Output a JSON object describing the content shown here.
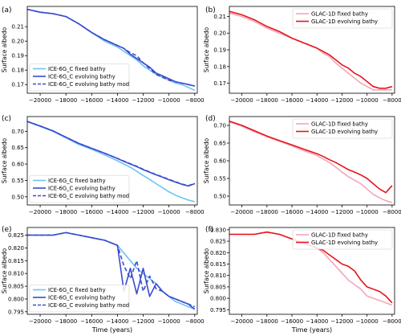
{
  "figure": {
    "x_axis_title": "Time (years)",
    "y_axis_title": "Surface albedo"
  },
  "chart_data": [
    {
      "id": "a",
      "type": "line",
      "panel_label": "(a)",
      "xlim": [
        -21000,
        -7800
      ],
      "ylim": [
        0.164,
        0.224
      ],
      "xticks": [
        -20000,
        -18000,
        -16000,
        -14000,
        -12000,
        -10000,
        -8000
      ],
      "yticks": [
        0.17,
        0.18,
        0.19,
        0.2,
        0.21
      ],
      "ylabel": "Surface albedo",
      "xlabel": "",
      "legend": {
        "position": "bottom-left"
      },
      "series": [
        {
          "name": "ICE-6G_C fixed bathy",
          "color": "#6ec3f4",
          "dash": "solid",
          "x": [
            -21000,
            -20000,
            -19000,
            -18000,
            -17000,
            -16000,
            -15000,
            -14000,
            -13500,
            -13000,
            -12500,
            -12000,
            -11500,
            -11000,
            -10500,
            -10000,
            -9500,
            -9000,
            -8500,
            -8000
          ],
          "y": [
            0.222,
            0.22,
            0.219,
            0.217,
            0.212,
            0.206,
            0.2,
            0.196,
            0.193,
            0.19,
            0.187,
            0.183,
            0.18,
            0.177,
            0.175,
            0.173,
            0.171,
            0.17,
            0.168,
            0.166
          ]
        },
        {
          "name": "ICE-6G_C evolving bathy",
          "color": "#3a4bcf",
          "dash": "solid",
          "x": [
            -21000,
            -20000,
            -19000,
            -18000,
            -17000,
            -16000,
            -15000,
            -14000,
            -13500,
            -13000,
            -12500,
            -12000,
            -11500,
            -11000,
            -10500,
            -10000,
            -9500,
            -9000,
            -8500,
            -8000
          ],
          "y": [
            0.222,
            0.22,
            0.219,
            0.217,
            0.212,
            0.206,
            0.201,
            0.197,
            0.195,
            0.191,
            0.188,
            0.185,
            0.182,
            0.178,
            0.176,
            0.174,
            0.172,
            0.171,
            0.17,
            0.169
          ]
        },
        {
          "name": "ICE-6G_C evolving bathy mod",
          "color": "#3a4bcf",
          "dash": "dashed",
          "x": [
            -21000,
            -20000,
            -19000,
            -18000,
            -17000,
            -16000,
            -15000,
            -14000,
            -13500,
            -13000,
            -12500,
            -12000,
            -11500,
            -11000,
            -10500,
            -10000,
            -9500,
            -9000,
            -8500,
            -8000
          ],
          "y": [
            0.222,
            0.22,
            0.219,
            0.217,
            0.212,
            0.206,
            0.201,
            0.197,
            0.195,
            0.192,
            0.19,
            0.185,
            0.181,
            0.177,
            0.175,
            0.173,
            0.172,
            0.171,
            0.17,
            0.169
          ]
        }
      ]
    },
    {
      "id": "b",
      "type": "line",
      "panel_label": "(b)",
      "xlim": [
        -21000,
        -7800
      ],
      "ylim": [
        0.164,
        0.216
      ],
      "xticks": [
        -20000,
        -18000,
        -16000,
        -14000,
        -12000,
        -10000,
        -8000
      ],
      "yticks": [
        0.17,
        0.18,
        0.19,
        0.2,
        0.21
      ],
      "ylabel": "Surface albedo",
      "xlabel": "",
      "legend": {
        "position": "top-right"
      },
      "series": [
        {
          "name": "GLAC-1D fixed bathy",
          "color": "#f4a6b5",
          "dash": "solid",
          "x": [
            -21000,
            -20000,
            -19000,
            -18000,
            -17000,
            -16000,
            -15000,
            -14000,
            -13500,
            -13000,
            -12500,
            -12000,
            -11500,
            -11000,
            -10500,
            -10000,
            -9500,
            -9000,
            -8500,
            -8000
          ],
          "y": [
            0.212,
            0.21,
            0.207,
            0.203,
            0.2,
            0.197,
            0.194,
            0.191,
            0.188,
            0.186,
            0.182,
            0.179,
            0.176,
            0.173,
            0.17,
            0.168,
            0.166,
            0.166,
            0.166,
            0.166
          ]
        },
        {
          "name": "GLAC-1D evolving bathy",
          "color": "#e8141b",
          "dash": "solid",
          "x": [
            -21000,
            -20000,
            -19000,
            -18000,
            -17000,
            -16000,
            -15000,
            -14000,
            -13500,
            -13000,
            -12500,
            -12000,
            -11500,
            -11000,
            -10500,
            -10000,
            -9500,
            -9000,
            -8500,
            -8000
          ],
          "y": [
            0.213,
            0.211,
            0.208,
            0.204,
            0.201,
            0.197,
            0.194,
            0.191,
            0.189,
            0.187,
            0.184,
            0.181,
            0.179,
            0.176,
            0.174,
            0.171,
            0.168,
            0.167,
            0.167,
            0.168
          ]
        }
      ]
    },
    {
      "id": "c",
      "type": "line",
      "panel_label": "(c)",
      "xlim": [
        -21000,
        -7800
      ],
      "ylim": [
        0.475,
        0.745
      ],
      "xticks": [
        -20000,
        -18000,
        -16000,
        -14000,
        -12000,
        -10000,
        -8000
      ],
      "yticks": [
        0.5,
        0.55,
        0.6,
        0.65,
        0.7
      ],
      "ylabel": "Surface albedo",
      "xlabel": "",
      "legend": {
        "position": "bottom-left"
      },
      "series": [
        {
          "name": "ICE-6G_C fixed bathy",
          "color": "#6ec3f4",
          "dash": "solid",
          "x": [
            -21000,
            -20000,
            -19000,
            -18000,
            -17000,
            -16000,
            -15000,
            -14000,
            -13500,
            -13000,
            -12500,
            -12000,
            -11500,
            -11000,
            -10500,
            -10000,
            -9500,
            -9000,
            -8500,
            -8000
          ],
          "y": [
            0.73,
            0.715,
            0.7,
            0.68,
            0.66,
            0.645,
            0.628,
            0.61,
            0.6,
            0.59,
            0.578,
            0.565,
            0.553,
            0.54,
            0.528,
            0.515,
            0.505,
            0.497,
            0.49,
            0.485
          ]
        },
        {
          "name": "ICE-6G_C evolving bathy",
          "color": "#3a4bcf",
          "dash": "solid",
          "x": [
            -21000,
            -20000,
            -19000,
            -18000,
            -17000,
            -16000,
            -15000,
            -14000,
            -13500,
            -13000,
            -12500,
            -12000,
            -11500,
            -11000,
            -10500,
            -10000,
            -9500,
            -9000,
            -8500,
            -8000
          ],
          "y": [
            0.73,
            0.716,
            0.701,
            0.682,
            0.663,
            0.648,
            0.633,
            0.617,
            0.608,
            0.6,
            0.592,
            0.583,
            0.575,
            0.567,
            0.56,
            0.552,
            0.545,
            0.538,
            0.533,
            0.54
          ]
        },
        {
          "name": "ICE-6G_C evolving bathy mod",
          "color": "#3a4bcf",
          "dash": "dashed",
          "x": [
            -21000,
            -20000,
            -19000,
            -18000,
            -17000,
            -16000,
            -15000,
            -14000,
            -13500,
            -13000,
            -12500,
            -12000,
            -11500,
            -11000,
            -10500,
            -10000,
            -9500,
            -9000,
            -8500,
            -8000
          ],
          "y": [
            0.73,
            0.716,
            0.701,
            0.682,
            0.663,
            0.648,
            0.633,
            0.617,
            0.609,
            0.601,
            0.593,
            0.584,
            0.576,
            0.568,
            0.561,
            0.553,
            0.546,
            0.539,
            0.534,
            0.541
          ]
        }
      ]
    },
    {
      "id": "d",
      "type": "line",
      "panel_label": "(d)",
      "xlim": [
        -21000,
        -7800
      ],
      "ylim": [
        0.475,
        0.725
      ],
      "xticks": [
        -20000,
        -18000,
        -16000,
        -14000,
        -12000,
        -10000,
        -8000
      ],
      "yticks": [
        0.5,
        0.55,
        0.6,
        0.65,
        0.7
      ],
      "ylabel": "Surface albedo",
      "xlabel": "",
      "legend": {
        "position": "top-right"
      },
      "series": [
        {
          "name": "GLAC-1D fixed bathy",
          "color": "#f4a6b5",
          "dash": "solid",
          "x": [
            -21000,
            -20000,
            -19000,
            -18000,
            -17000,
            -16000,
            -15000,
            -14000,
            -13500,
            -13000,
            -12500,
            -12000,
            -11500,
            -11000,
            -10500,
            -10000,
            -9500,
            -9000,
            -8500,
            -8000
          ],
          "y": [
            0.71,
            0.698,
            0.682,
            0.668,
            0.655,
            0.642,
            0.628,
            0.615,
            0.605,
            0.595,
            0.582,
            0.568,
            0.555,
            0.545,
            0.535,
            0.52,
            0.505,
            0.495,
            0.487,
            0.482
          ]
        },
        {
          "name": "GLAC-1D evolving bathy",
          "color": "#e8141b",
          "dash": "solid",
          "x": [
            -21000,
            -20000,
            -19000,
            -18000,
            -17000,
            -16000,
            -15000,
            -14000,
            -13500,
            -13000,
            -12500,
            -12000,
            -11500,
            -11000,
            -10500,
            -10000,
            -9500,
            -9000,
            -8500,
            -8000
          ],
          "y": [
            0.712,
            0.7,
            0.685,
            0.67,
            0.657,
            0.645,
            0.632,
            0.62,
            0.612,
            0.603,
            0.595,
            0.585,
            0.575,
            0.568,
            0.56,
            0.55,
            0.535,
            0.52,
            0.51,
            0.53
          ]
        }
      ]
    },
    {
      "id": "e",
      "type": "line",
      "panel_label": "(e)",
      "xlim": [
        -21000,
        -7800
      ],
      "ylim": [
        0.794,
        0.828
      ],
      "xticks": [
        -20000,
        -18000,
        -16000,
        -14000,
        -12000,
        -10000,
        -8000
      ],
      "yticks": [
        0.795,
        0.8,
        0.805,
        0.81,
        0.815,
        0.82,
        0.825
      ],
      "ylabel": "Surface albedo",
      "xlabel": "Time (years)",
      "legend": {
        "position": "bottom-left"
      },
      "series": [
        {
          "name": "ICE-6G_C fixed bathy",
          "color": "#6ec3f4",
          "dash": "solid",
          "x": [
            -21000,
            -20000,
            -19000,
            -18000,
            -17000,
            -16000,
            -15000,
            -14000,
            -13500,
            -13000,
            -12500,
            -12000,
            -11500,
            -11000,
            -10500,
            -10000,
            -9500,
            -9000,
            -8500,
            -8000
          ],
          "y": [
            0.825,
            0.825,
            0.825,
            0.826,
            0.825,
            0.824,
            0.823,
            0.821,
            0.818,
            0.815,
            0.812,
            0.81,
            0.808,
            0.806,
            0.803,
            0.801,
            0.799,
            0.798,
            0.797,
            0.796
          ]
        },
        {
          "name": "ICE-6G_C evolving bathy",
          "color": "#3a4bcf",
          "dash": "solid",
          "x": [
            -21000,
            -20000,
            -19000,
            -18000,
            -17000,
            -16000,
            -15000,
            -14000,
            -13500,
            -13000,
            -12500,
            -12000,
            -11500,
            -11000,
            -10500,
            -10000,
            -9500,
            -9000,
            -8500,
            -8000
          ],
          "y": [
            0.825,
            0.825,
            0.825,
            0.826,
            0.825,
            0.824,
            0.823,
            0.821,
            0.803,
            0.812,
            0.802,
            0.812,
            0.801,
            0.806,
            0.803,
            0.801,
            0.8,
            0.799,
            0.798,
            0.796
          ]
        },
        {
          "name": "ICE-6G_C evolving bathy mod",
          "color": "#3a4bcf",
          "dash": "dashed",
          "x": [
            -21000,
            -20000,
            -19000,
            -18000,
            -17000,
            -16000,
            -15000,
            -14000,
            -13500,
            -13000,
            -12500,
            -12000,
            -11500,
            -11000,
            -10500,
            -10000,
            -9500,
            -9000,
            -8500,
            -8000
          ],
          "y": [
            0.825,
            0.825,
            0.825,
            0.826,
            0.825,
            0.824,
            0.823,
            0.821,
            0.813,
            0.808,
            0.815,
            0.803,
            0.809,
            0.804,
            0.803,
            0.801,
            0.8,
            0.799,
            0.798,
            0.797
          ]
        }
      ]
    },
    {
      "id": "f",
      "type": "line",
      "panel_label": "(f)",
      "xlim": [
        -21000,
        -7800
      ],
      "ylim": [
        0.793,
        0.831
      ],
      "xticks": [
        -20000,
        -18000,
        -16000,
        -14000,
        -12000,
        -10000,
        -8000
      ],
      "yticks": [
        0.795,
        0.8,
        0.805,
        0.81,
        0.815,
        0.82,
        0.825,
        0.83
      ],
      "ylabel": "Surface albedo",
      "xlabel": "Time (years)",
      "legend": {
        "position": "top-right"
      },
      "series": [
        {
          "name": "GLAC-1D fixed bathy",
          "color": "#f4a6b5",
          "dash": "solid",
          "x": [
            -21000,
            -20000,
            -19000,
            -18000,
            -17000,
            -16000,
            -15000,
            -14000,
            -13500,
            -13000,
            -12500,
            -12000,
            -11500,
            -11000,
            -10500,
            -10000,
            -9500,
            -9000,
            -8500,
            -8000
          ],
          "y": [
            0.828,
            0.828,
            0.828,
            0.829,
            0.828,
            0.826,
            0.824,
            0.822,
            0.82,
            0.817,
            0.814,
            0.811,
            0.808,
            0.806,
            0.804,
            0.801,
            0.8,
            0.799,
            0.798,
            0.797
          ]
        },
        {
          "name": "GLAC-1D evolving bathy",
          "color": "#e8141b",
          "dash": "solid",
          "x": [
            -21000,
            -20000,
            -19000,
            -18000,
            -17000,
            -16000,
            -15000,
            -14000,
            -13500,
            -13000,
            -12500,
            -12000,
            -11500,
            -11000,
            -10500,
            -10000,
            -9500,
            -9000,
            -8500,
            -8000
          ],
          "y": [
            0.828,
            0.828,
            0.828,
            0.829,
            0.828,
            0.826,
            0.824,
            0.822,
            0.821,
            0.819,
            0.817,
            0.815,
            0.814,
            0.812,
            0.808,
            0.805,
            0.804,
            0.803,
            0.801,
            0.798
          ]
        }
      ]
    }
  ]
}
